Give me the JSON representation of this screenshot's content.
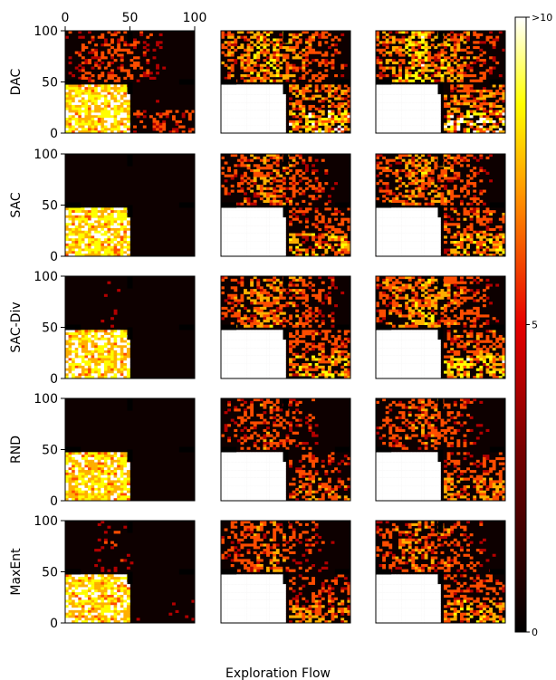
{
  "chart_data": {
    "type": "heatmap",
    "xlabel": "Exploration Flow",
    "row_labels": [
      "DAC",
      "SAC",
      "SAC-Div",
      "RND",
      "MaxEnt"
    ],
    "columns": 3,
    "xlim": [
      0,
      100
    ],
    "ylim": [
      0,
      100
    ],
    "x_ticks": [
      "0",
      "50",
      "100"
    ],
    "y_ticks": [
      "100",
      "50",
      "0"
    ],
    "colorbar": {
      "range": [
        0,
        10
      ],
      "ticks": [
        "0",
        "5",
        ">10"
      ],
      "colormap": "hot",
      "colors": [
        "#000000",
        "#b30000",
        "#ff4d00",
        "#ffb000",
        "#ffff00",
        "#ffffff"
      ]
    },
    "background_color": "#0d0000",
    "explored_fraction": [
      [
        0.55,
        0.75,
        0.8
      ],
      [
        0.25,
        0.6,
        0.65
      ],
      [
        0.35,
        0.65,
        0.7
      ],
      [
        0.2,
        0.5,
        0.55
      ],
      [
        0.4,
        0.55,
        0.6
      ]
    ]
  }
}
